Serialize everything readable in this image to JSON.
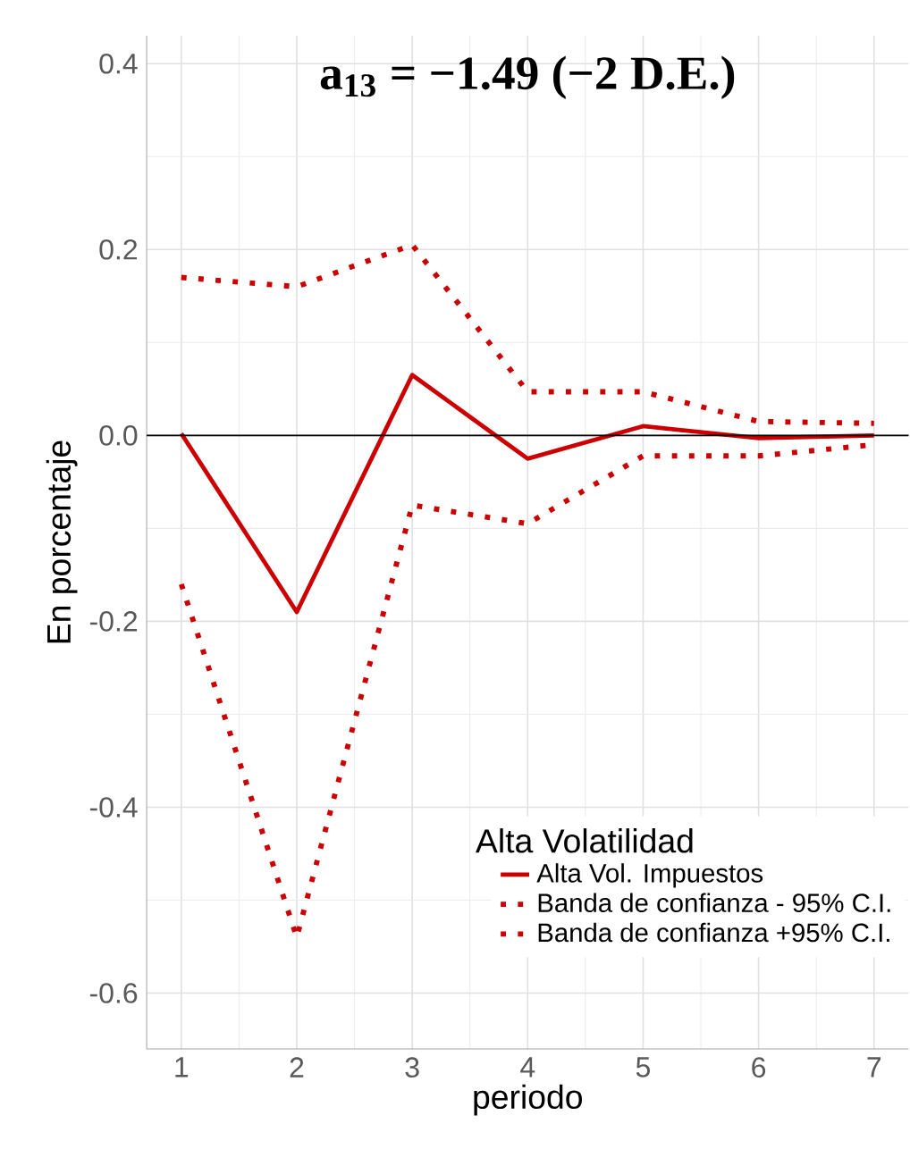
{
  "chart_data": {
    "type": "line",
    "title": "a$_{13}$ = −1.49 (−2 D.E.)",
    "xlabel": "periodo",
    "ylabel": "En porcentaje",
    "legend_title": "Alta Volatilidad",
    "x": [
      1,
      2,
      3,
      4,
      5,
      6,
      7
    ],
    "series": [
      {
        "name": "Alta Vol. Impuestos",
        "color": "#cc0000",
        "line_style": "solid",
        "values": [
          0.002,
          -0.19,
          0.065,
          -0.025,
          0.01,
          -0.003,
          0.0
        ]
      },
      {
        "name": "Banda de confianza - 95% C.I.",
        "color": "#cc0000",
        "line_style": "dotted",
        "values": [
          -0.16,
          -0.54,
          -0.075,
          -0.095,
          -0.022,
          -0.022,
          -0.01
        ]
      },
      {
        "name": "Banda de confianza +95% C.I.",
        "color": "#cc0000",
        "line_style": "dotted",
        "values": [
          0.17,
          0.16,
          0.205,
          0.047,
          0.047,
          0.015,
          0.013
        ]
      }
    ],
    "ref_lines": [
      {
        "axis": "y",
        "value": 0,
        "color": "#000000"
      }
    ],
    "xlim": [
      0.7,
      7.3
    ],
    "xticks": [
      1,
      2,
      3,
      4,
      5,
      6,
      7
    ],
    "ylim": [
      -0.66,
      0.43
    ],
    "yticks": [
      -0.6,
      -0.4,
      -0.2,
      {
        "value": 0,
        "label": "0.0"
      },
      0.2,
      0.4
    ],
    "grid": true,
    "legend": "bottom right",
    "marker": "none"
  }
}
